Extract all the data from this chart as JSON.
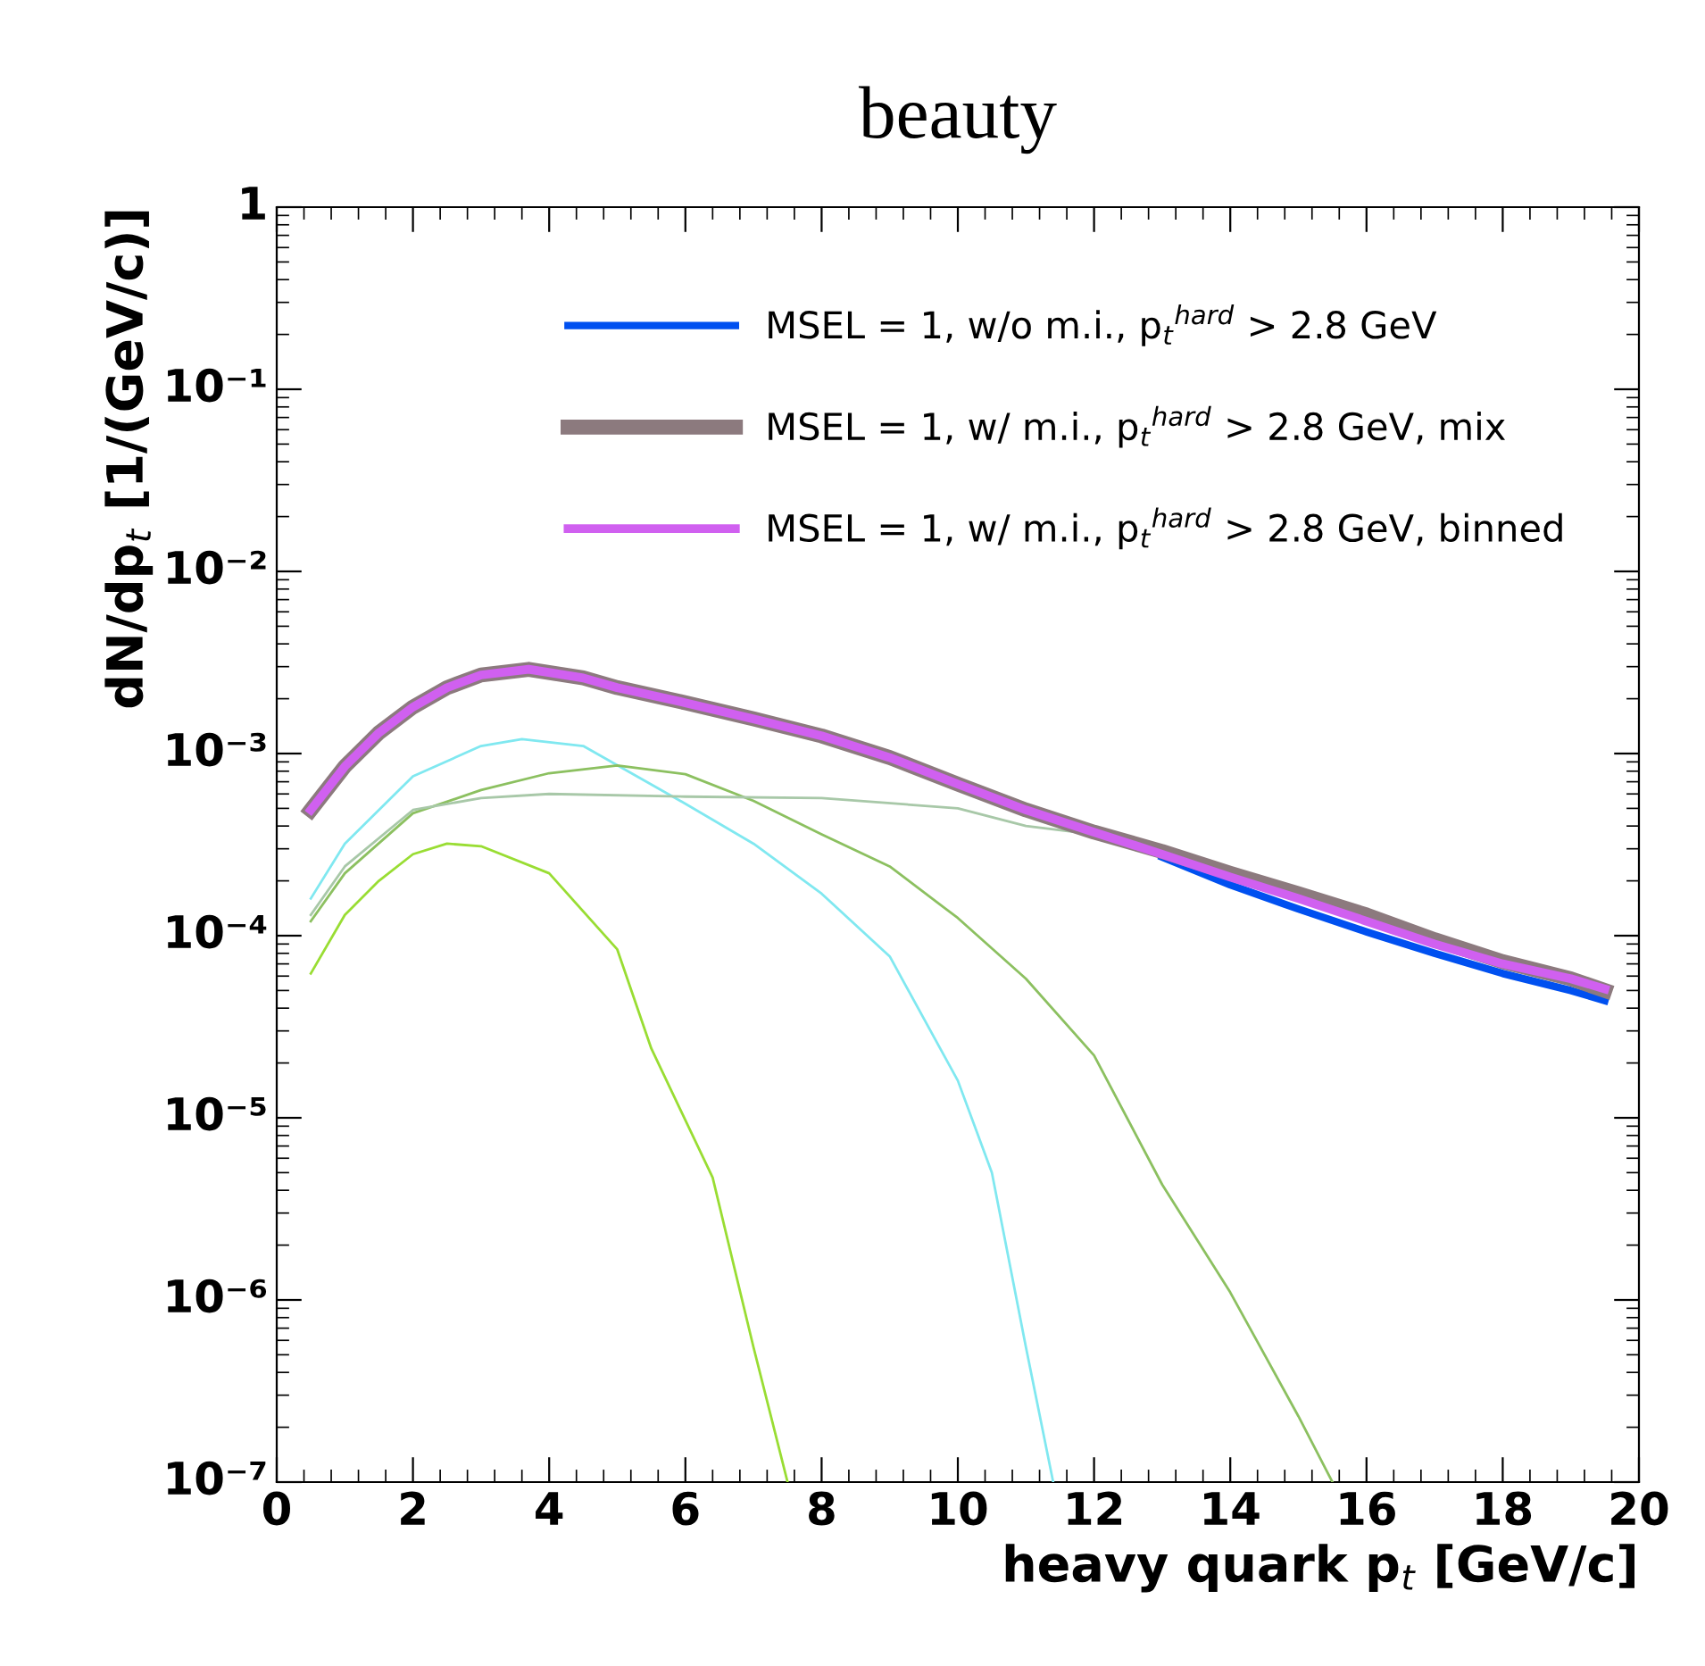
{
  "chart_data": {
    "type": "line",
    "title": "beauty",
    "xlabel": "heavy quark p$_{t}$ [GeV/c]",
    "ylabel": "dN/dp$_{t}$ [1/(GeV/c)]",
    "log": "y",
    "xlim": [
      0,
      20
    ],
    "ylim": [
      1e-07,
      1
    ],
    "xticks": [
      0,
      2,
      4,
      6,
      8,
      10,
      12,
      14,
      16,
      18,
      20
    ],
    "yticks": [
      {
        "value": 1e-07,
        "label": "10⁻⁷"
      },
      {
        "value": 1e-06,
        "label": "10⁻⁶"
      },
      {
        "value": 1e-05,
        "label": "10⁻⁵"
      },
      {
        "value": 0.0001,
        "label": "10⁻⁴"
      },
      {
        "value": 0.001,
        "label": "10⁻³"
      },
      {
        "value": 0.01,
        "label": "10⁻²"
      },
      {
        "value": 0.1,
        "label": "10⁻¹"
      },
      {
        "value": 1,
        "label": "1"
      }
    ],
    "grid": false,
    "legend": "top",
    "marker": "none",
    "line_style": "solid",
    "series": [
      {
        "name": "MSEL = 1, w/o m.i., p$_{t}$$^{hard}$ > 2.8 GeV",
        "color": "#0050f0",
        "x": [
          13,
          14,
          15,
          16,
          17,
          18,
          19,
          19.5
        ],
        "values": [
          0.00027,
          0.00019,
          0.00014,
          0.000105,
          8e-05,
          6.2e-05,
          5e-05,
          4.4e-05
        ]
      },
      {
        "name": "MSEL = 1, w/ m.i., p$_{t}$$^{hard}$ > 2.8 GeV, mix",
        "color": "#8c7a7e",
        "x": [
          0.5,
          1,
          1.5,
          2,
          2.5,
          3,
          3.7,
          4.5,
          5,
          6,
          7,
          8,
          9,
          10,
          11,
          12,
          13,
          14,
          15,
          16,
          17,
          18,
          19,
          19.5
        ],
        "values": [
          0.00049,
          0.00085,
          0.0013,
          0.0018,
          0.0023,
          0.0027,
          0.0029,
          0.0026,
          0.0023,
          0.0019,
          0.00155,
          0.00125,
          0.00095,
          0.00068,
          0.00049,
          0.00037,
          0.00029,
          0.00022,
          0.00017,
          0.00013,
          9.5e-05,
          7.2e-05,
          5.8e-05,
          5e-05
        ]
      },
      {
        "name": "MSEL = 1, w/ m.i., p$_{t}$$^{hard}$ > 2.8 GeV, binned",
        "color": "#d060f0",
        "x": [
          0.5,
          1,
          1.5,
          2,
          2.5,
          3,
          3.7,
          4.5,
          5,
          6,
          7,
          8,
          9,
          10,
          11,
          12,
          13,
          14,
          15,
          16,
          17,
          18,
          19,
          19.5
        ],
        "values": [
          0.00049,
          0.00085,
          0.0013,
          0.0018,
          0.0023,
          0.0027,
          0.0029,
          0.0026,
          0.0023,
          0.0019,
          0.00155,
          0.00125,
          0.00095,
          0.00068,
          0.00049,
          0.00037,
          0.00028,
          0.00021,
          0.00016,
          0.00012,
          9e-05,
          7e-05,
          5.8e-05,
          5.1e-05
        ]
      },
      {
        "color": "#80e8f0",
        "x": [
          0.5,
          1,
          2,
          3,
          3.6,
          4.5,
          6,
          7,
          8,
          9,
          10,
          10.5,
          11,
          11.4
        ],
        "values": [
          0.00016,
          0.00032,
          0.00075,
          0.0011,
          0.0012,
          0.0011,
          0.00053,
          0.00032,
          0.00017,
          7.7e-05,
          1.6e-05,
          5e-06,
          5.5e-07,
          1e-07
        ]
      },
      {
        "color": "#8cc060",
        "x": [
          0.5,
          1,
          2,
          3,
          4,
          5,
          6,
          7,
          8,
          9,
          10,
          11,
          12,
          13,
          14,
          15,
          15.5
        ],
        "values": [
          0.00012,
          0.00022,
          0.00047,
          0.00063,
          0.00078,
          0.00086,
          0.00077,
          0.00055,
          0.00036,
          0.00024,
          0.000125,
          5.8e-05,
          2.2e-05,
          4.3e-06,
          1.1e-06,
          2.3e-07,
          1e-07
        ]
      },
      {
        "color": "#a8c8a8",
        "x": [
          0.5,
          1,
          2,
          3,
          4,
          6,
          8,
          10,
          11,
          12
        ],
        "values": [
          0.00013,
          0.00024,
          0.00049,
          0.00057,
          0.0006,
          0.00058,
          0.00057,
          0.0005,
          0.0004,
          0.00036
        ]
      },
      {
        "color": "#99dd33",
        "x": [
          0.5,
          1,
          1.5,
          2,
          2.5,
          3,
          4,
          5,
          5.5,
          6.4,
          7,
          7.5
        ],
        "values": [
          6.2e-05,
          0.00013,
          0.0002,
          0.00028,
          0.00032,
          0.00031,
          0.00022,
          8.4e-05,
          2.4e-05,
          4.7e-06,
          5.5e-07,
          1e-07
        ]
      }
    ]
  }
}
